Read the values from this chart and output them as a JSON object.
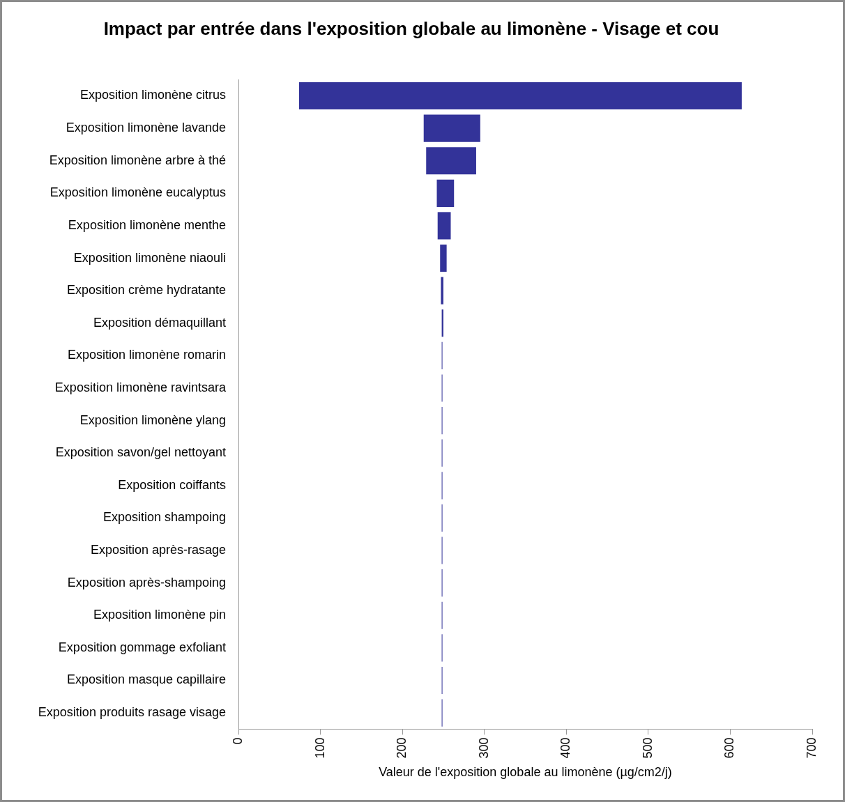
{
  "chart_data": {
    "type": "bar",
    "orientation": "horizontal",
    "title": "Impact par entrée dans l'exposition globale au limonène - Visage et cou",
    "xlabel": "Valeur de l'exposition globale au limonène (µg/cm2/j)",
    "categories": [
      "Exposition limonène citrus",
      "Exposition limonène lavande",
      "Exposition limonène arbre à thé",
      "Exposition limonène eucalyptus",
      "Exposition limonène menthe",
      "Exposition limonène niaouli",
      "Exposition crème hydratante",
      "Exposition démaquillant",
      "Exposition limonène romarin",
      "Exposition limonène ravintsara",
      "Exposition limonène ylang",
      "Exposition savon/gel nettoyant",
      "Exposition coiffants",
      "Exposition shampoing",
      "Exposition après-rasage",
      "Exposition après-shampoing",
      "Exposition limonène pin",
      "Exposition gommage exfoliant",
      "Exposition masque capillaire",
      "Exposition produits rasage visage"
    ],
    "base": [
      74,
      226,
      229,
      242,
      243,
      246,
      247,
      248,
      248,
      248,
      248,
      248,
      248,
      248,
      248,
      248,
      248,
      248,
      248,
      248
    ],
    "values": [
      540,
      69,
      61,
      21,
      16,
      8,
      3,
      2,
      0,
      0,
      0,
      0,
      0,
      0,
      0,
      0,
      0,
      0,
      0,
      0
    ],
    "color": "#333399",
    "xlim": [
      0,
      700
    ],
    "xticks": [
      0,
      100,
      200,
      300,
      400,
      500,
      600,
      700
    ],
    "grid": false,
    "legend": false
  }
}
